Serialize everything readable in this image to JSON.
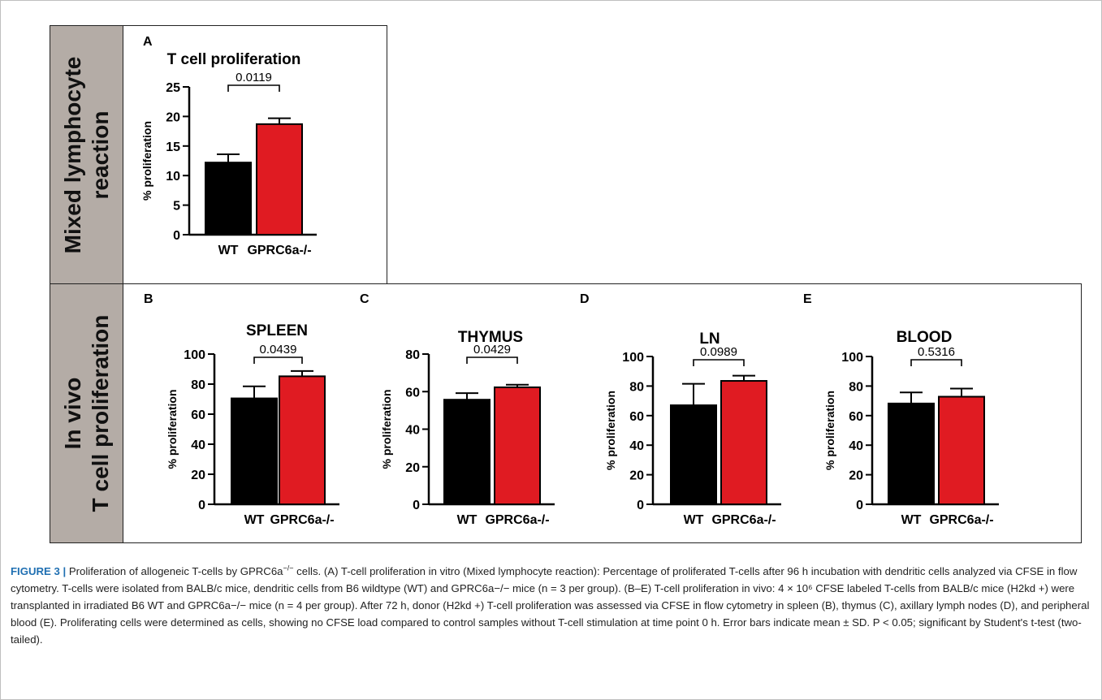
{
  "sections": {
    "mlr_label": "Mixed lymphocyte reaction",
    "invivo_label_line1": "In vivo",
    "invivo_label_line2": "T cell proliferation"
  },
  "colors": {
    "wt": "#000000",
    "ko": "#e01b22",
    "label_bg": "#b4aca6",
    "caption_head": "#1f6fb2"
  },
  "chart_data": [
    {
      "type": "bar",
      "panel": "A",
      "title": "T cell proliferation",
      "ylabel": "% proliferation",
      "categories": [
        "WT",
        "GPRC6a-/-"
      ],
      "values": [
        12.2,
        18.7
      ],
      "errors": [
        1.4,
        1.0
      ],
      "ylim": [
        0,
        25
      ],
      "yticks": [
        "0",
        "5",
        "10",
        "15",
        "20",
        "25"
      ],
      "pvalue": "0.0119"
    },
    {
      "type": "bar",
      "panel": "B",
      "title": "SPLEEN",
      "ylabel": "% proliferation",
      "categories": [
        "WT",
        "GPRC6a-/-"
      ],
      "values": [
        70.5,
        85.2
      ],
      "errors": [
        8.0,
        3.5
      ],
      "ylim": [
        0,
        100
      ],
      "yticks": [
        "0",
        "20",
        "40",
        "60",
        "80",
        "100"
      ],
      "pvalue": "0.0439"
    },
    {
      "type": "bar",
      "panel": "C",
      "title": "THYMUS",
      "ylabel": "% proliferation",
      "categories": [
        "WT",
        "GPRC6a-/-"
      ],
      "values": [
        55.7,
        62.3
      ],
      "errors": [
        3.5,
        1.4
      ],
      "ylim": [
        0,
        80
      ],
      "yticks": [
        "0",
        "20",
        "40",
        "60",
        "80"
      ],
      "pvalue": "0.0429"
    },
    {
      "type": "bar",
      "panel": "D",
      "title": "LN",
      "ylabel": "% proliferation",
      "categories": [
        "WT",
        "GPRC6a-/-"
      ],
      "values": [
        67.0,
        83.5
      ],
      "errors": [
        14.5,
        3.5
      ],
      "ylim": [
        0,
        100
      ],
      "yticks": [
        "0",
        "20",
        "40",
        "60",
        "80",
        "100"
      ],
      "pvalue": "0.0989"
    },
    {
      "type": "bar",
      "panel": "E",
      "title": "BLOOD",
      "ylabel": "% proliferation",
      "categories": [
        "WT",
        "GPRC6a-/-"
      ],
      "values": [
        68.2,
        72.8
      ],
      "errors": [
        7.5,
        5.5
      ],
      "ylim": [
        0,
        100
      ],
      "yticks": [
        "0",
        "20",
        "40",
        "60",
        "80",
        "100"
      ],
      "pvalue": "0.5316"
    }
  ],
  "caption": {
    "figure_label": "FIGURE 3 |",
    "title_part1": " Proliferation of allogeneic T-cells by GPRC6a",
    "superscript": "−/−",
    "title_part2": " cells.",
    "body": "(A) T-cell proliferation in vitro (Mixed lymphocyte reaction): Percentage of proliferated T-cells after 96 h incubation with dendritic cells analyzed via CFSE in flow cytometry. T-cells were isolated from BALB/c mice, dendritic cells from B6 wildtype (WT) and GPRC6a−/− mice (n = 3 per group). (B–E) T-cell proliferation in vivo: 4 × 10⁶ CFSE labeled T-cells from BALB/c mice (H2kd +) were transplanted in irradiated B6 WT and GPRC6a−/− mice (n = 4 per group). After 72 h, donor (H2kd +) T-cell proliferation was assessed via CFSE in flow cytometry in spleen (B), thymus (C), axillary lymph nodes (D), and peripheral blood (E). Proliferating cells were determined as cells, showing no CFSE load compared to control samples without T-cell stimulation at time point 0 h. Error bars indicate mean ± SD. P < 0.05; significant by Student's t-test (two-tailed)."
  }
}
